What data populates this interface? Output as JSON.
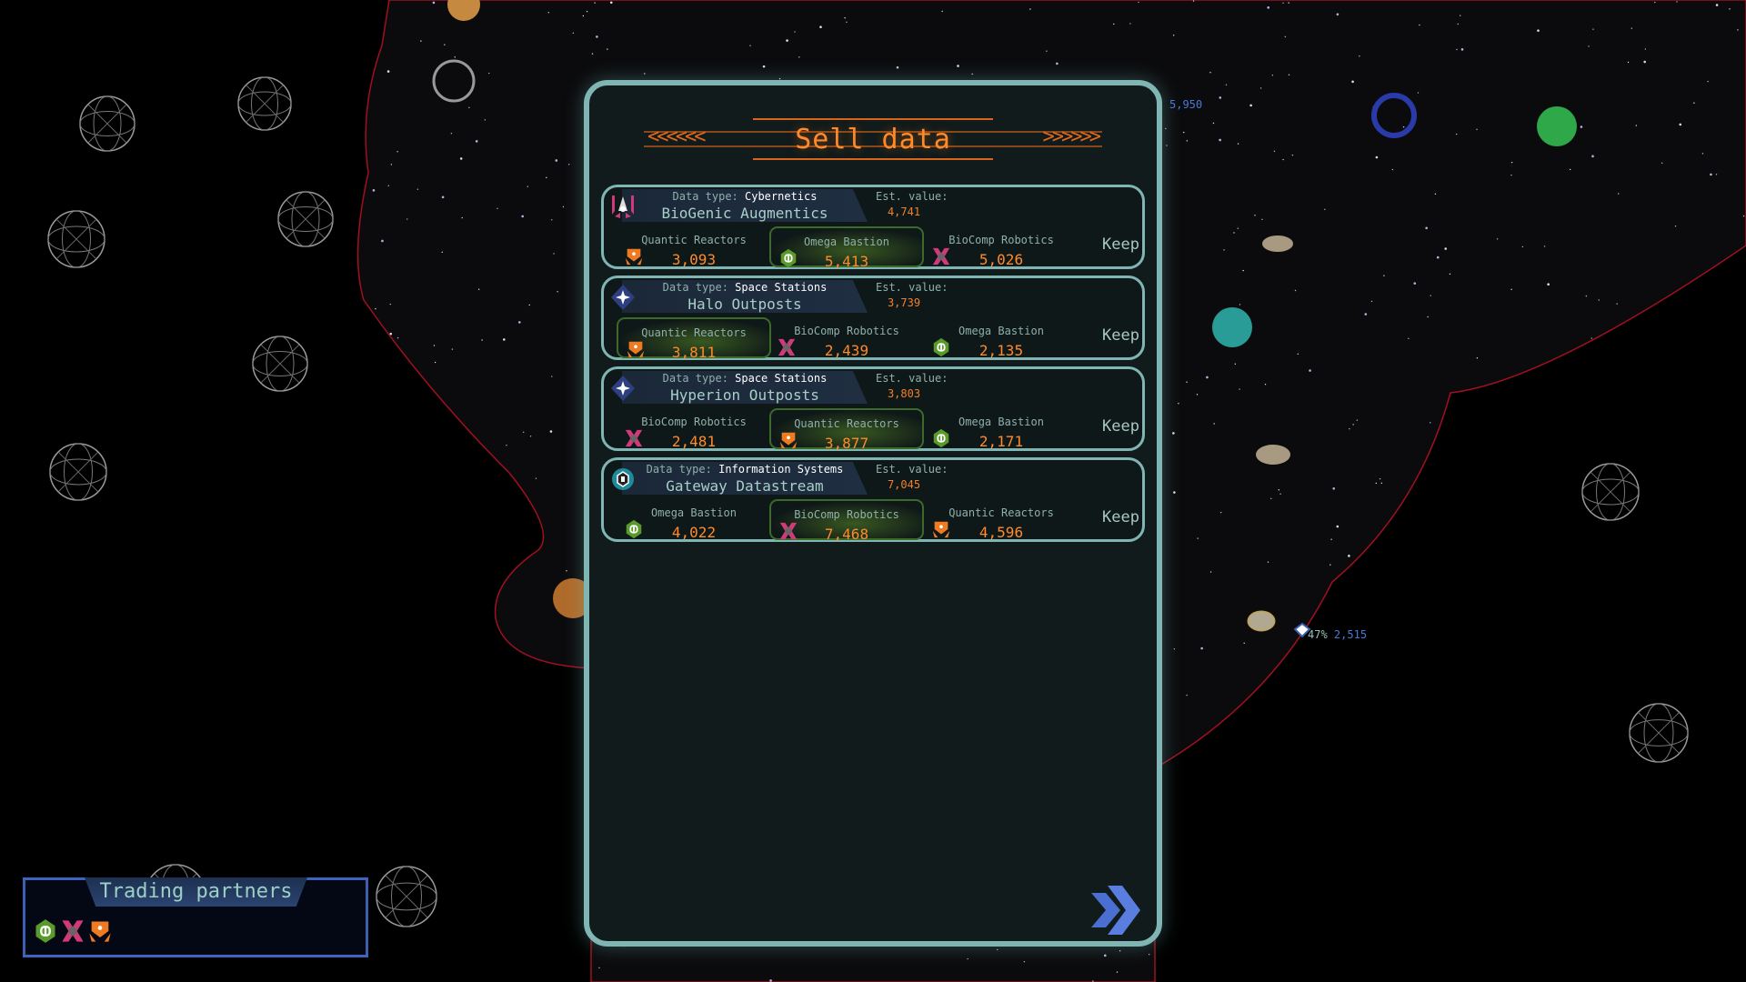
{
  "panel": {
    "title": "Sell data",
    "keep_label": "Keep",
    "type_prefix": "Data type: ",
    "est_label": "Est. value:",
    "cards": [
      {
        "type": "Cybernetics",
        "name": "BioGenic Augmentics",
        "est_value": "4,741",
        "icon": "cybernetics-icon",
        "offers": [
          {
            "buyer": "Quantic Reactors",
            "value": "3,093",
            "icon": "quantic-reactors-icon",
            "best": false
          },
          {
            "buyer": "Omega Bastion",
            "value": "5,413",
            "icon": "omega-bastion-icon",
            "best": true
          },
          {
            "buyer": "BioComp Robotics",
            "value": "5,026",
            "icon": "biocomp-robotics-icon",
            "best": false
          }
        ]
      },
      {
        "type": "Space Stations",
        "name": "Halo Outposts",
        "est_value": "3,739",
        "icon": "space-station-icon",
        "offers": [
          {
            "buyer": "Quantic Reactors",
            "value": "3,811",
            "icon": "quantic-reactors-icon",
            "best": true
          },
          {
            "buyer": "BioComp Robotics",
            "value": "2,439",
            "icon": "biocomp-robotics-icon",
            "best": false
          },
          {
            "buyer": "Omega Bastion",
            "value": "2,135",
            "icon": "omega-bastion-icon",
            "best": false
          }
        ]
      },
      {
        "type": "Space Stations",
        "name": "Hyperion Outposts",
        "est_value": "3,803",
        "icon": "space-station-icon",
        "offers": [
          {
            "buyer": "BioComp Robotics",
            "value": "2,481",
            "icon": "biocomp-robotics-icon",
            "best": false
          },
          {
            "buyer": "Quantic Reactors",
            "value": "3,877",
            "icon": "quantic-reactors-icon",
            "best": true
          },
          {
            "buyer": "Omega Bastion",
            "value": "2,171",
            "icon": "omega-bastion-icon",
            "best": false
          }
        ]
      },
      {
        "type": "Information Systems",
        "name": "Gateway Datastream",
        "est_value": "7,045",
        "icon": "information-systems-icon",
        "offers": [
          {
            "buyer": "Omega Bastion",
            "value": "4,022",
            "icon": "omega-bastion-icon",
            "best": false
          },
          {
            "buyer": "BioComp Robotics",
            "value": "7,468",
            "icon": "biocomp-robotics-icon",
            "best": true
          },
          {
            "buyer": "Quantic Reactors",
            "value": "4,596",
            "icon": "quantic-reactors-icon",
            "best": false
          }
        ]
      }
    ],
    "next_icon": "double-chevron-right-icon"
  },
  "trading_partners": {
    "title": "Trading partners",
    "icons": [
      "omega-bastion-icon",
      "biocomp-robotics-icon",
      "quantic-reactors-icon"
    ]
  },
  "map": {
    "label_top": "5,950",
    "label_pct": "47%",
    "label_value": "2,515"
  },
  "colors": {
    "accent": "#ff8a2a",
    "frame": "#7fb6b3",
    "best_offer": "#3d6a2a",
    "partners_frame": "#3d64c0",
    "region_border": "#a01020"
  }
}
